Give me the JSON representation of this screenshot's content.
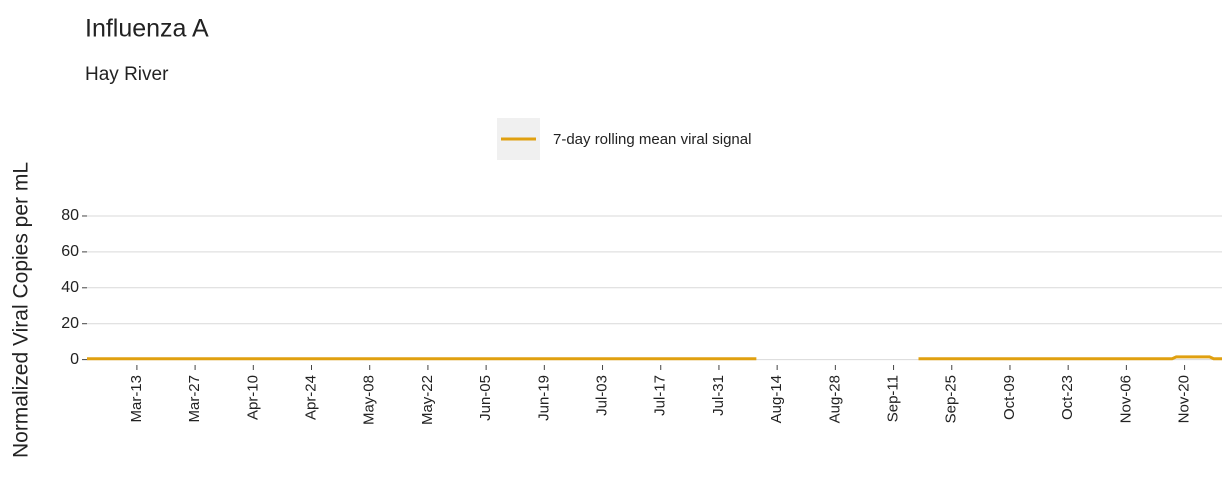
{
  "chart_data": {
    "type": "line",
    "title": "Influenza A",
    "subtitle": "Hay River",
    "y_label": "Normalized Viral Copies per mL",
    "x": [
      "Mar-01",
      "Aug-09",
      "Aug-10",
      "Sep-17",
      "Nov-17",
      "Nov-18",
      "Nov-26",
      "Nov-27",
      "Nov-29"
    ],
    "series": [
      {
        "name": "7-day rolling mean viral signal",
        "color": "#e0a010",
        "values": [
          0.5,
          0.5,
          null,
          0.5,
          0.5,
          1.5,
          1.5,
          0.5,
          0.5
        ]
      }
    ],
    "xlim": [
      "Mar-01",
      "Nov-29"
    ],
    "xticks": [
      "Mar-13",
      "Mar-27",
      "Apr-10",
      "Apr-24",
      "May-08",
      "May-22",
      "Jun-05",
      "Jun-19",
      "Jul-03",
      "Jul-17",
      "Jul-31",
      "Aug-14",
      "Aug-28",
      "Sep-11",
      "Sep-25",
      "Oct-09",
      "Oct-23",
      "Nov-06",
      "Nov-20"
    ],
    "ylim": [
      -3,
      85
    ],
    "yticks": [
      0,
      20,
      40,
      60,
      80
    ],
    "grid": true,
    "legend": "top"
  }
}
